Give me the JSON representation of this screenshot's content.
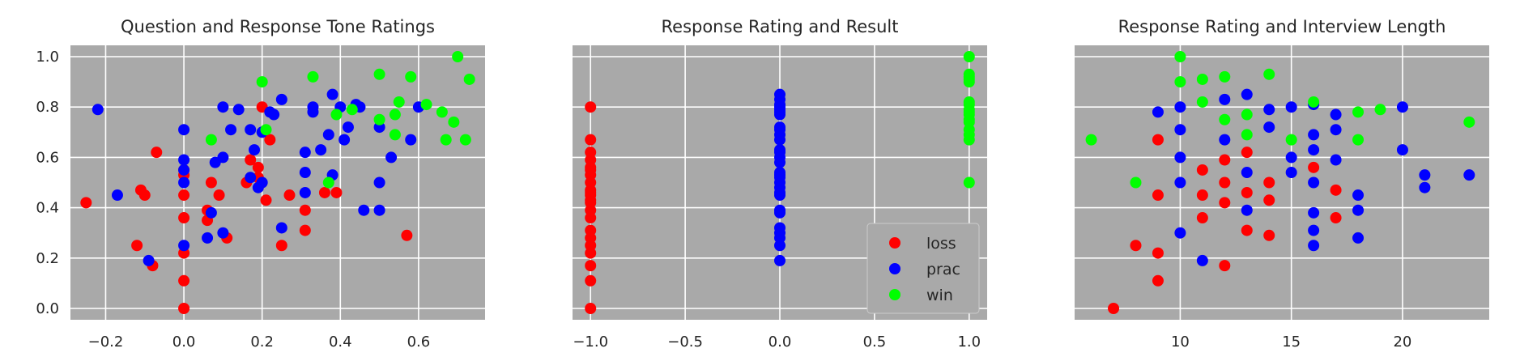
{
  "colors": {
    "background": "#ffffff",
    "plot_area": "#a9a9a9",
    "grid": "#ffffff",
    "loss": "#ff0000",
    "prac": "#0000ff",
    "win": "#00ff00"
  },
  "legend": {
    "placement": "lower-right",
    "entries": [
      "loss",
      "prac",
      "win"
    ]
  },
  "chart_data": [
    {
      "type": "scatter",
      "title": "Question and Response Tone Ratings",
      "xlabel": "",
      "ylabel": "",
      "xlim": [
        -0.29,
        0.77
      ],
      "ylim": [
        -0.045,
        1.045
      ],
      "xticks": [
        -0.2,
        0.0,
        0.2,
        0.4,
        0.6
      ],
      "xtick_labels": [
        "−0.2",
        "0.0",
        "0.2",
        "0.4",
        "0.6"
      ],
      "yticks": [
        0.0,
        0.2,
        0.4,
        0.6,
        0.8,
        1.0
      ],
      "ytick_labels": [
        "0.0",
        "0.2",
        "0.4",
        "0.6",
        "0.8",
        "1.0"
      ],
      "grid": true,
      "series": [
        {
          "name": "loss",
          "color": "#ff0000",
          "points": [
            [
              -0.25,
              0.42
            ],
            [
              -0.12,
              0.25
            ],
            [
              -0.11,
              0.47
            ],
            [
              -0.1,
              0.45
            ],
            [
              -0.08,
              0.17
            ],
            [
              -0.07,
              0.62
            ],
            [
              0.0,
              0.0
            ],
            [
              0.0,
              0.11
            ],
            [
              0.0,
              0.22
            ],
            [
              0.0,
              0.36
            ],
            [
              0.0,
              0.45
            ],
            [
              0.0,
              0.53
            ],
            [
              0.0,
              0.55
            ],
            [
              0.06,
              0.35
            ],
            [
              0.06,
              0.39
            ],
            [
              0.07,
              0.5
            ],
            [
              0.09,
              0.45
            ],
            [
              0.11,
              0.28
            ],
            [
              0.16,
              0.5
            ],
            [
              0.17,
              0.59
            ],
            [
              0.19,
              0.56
            ],
            [
              0.19,
              0.52
            ],
            [
              0.2,
              0.8
            ],
            [
              0.21,
              0.43
            ],
            [
              0.22,
              0.67
            ],
            [
              0.25,
              0.25
            ],
            [
              0.27,
              0.45
            ],
            [
              0.31,
              0.31
            ],
            [
              0.31,
              0.39
            ],
            [
              0.36,
              0.46
            ],
            [
              0.39,
              0.46
            ],
            [
              0.57,
              0.29
            ]
          ]
        },
        {
          "name": "prac",
          "color": "#0000ff",
          "points": [
            [
              -0.22,
              0.79
            ],
            [
              -0.17,
              0.45
            ],
            [
              -0.09,
              0.19
            ],
            [
              0.0,
              0.25
            ],
            [
              0.0,
              0.5
            ],
            [
              0.0,
              0.55
            ],
            [
              0.0,
              0.59
            ],
            [
              0.0,
              0.71
            ],
            [
              0.06,
              0.28
            ],
            [
              0.07,
              0.38
            ],
            [
              0.08,
              0.58
            ],
            [
              0.1,
              0.3
            ],
            [
              0.1,
              0.6
            ],
            [
              0.1,
              0.8
            ],
            [
              0.12,
              0.71
            ],
            [
              0.14,
              0.79
            ],
            [
              0.17,
              0.52
            ],
            [
              0.17,
              0.71
            ],
            [
              0.18,
              0.63
            ],
            [
              0.19,
              0.48
            ],
            [
              0.2,
              0.5
            ],
            [
              0.2,
              0.7
            ],
            [
              0.22,
              0.78
            ],
            [
              0.23,
              0.77
            ],
            [
              0.25,
              0.32
            ],
            [
              0.25,
              0.83
            ],
            [
              0.31,
              0.46
            ],
            [
              0.31,
              0.54
            ],
            [
              0.31,
              0.62
            ],
            [
              0.33,
              0.78
            ],
            [
              0.33,
              0.8
            ],
            [
              0.35,
              0.63
            ],
            [
              0.37,
              0.69
            ],
            [
              0.38,
              0.53
            ],
            [
              0.38,
              0.85
            ],
            [
              0.4,
              0.8
            ],
            [
              0.41,
              0.67
            ],
            [
              0.42,
              0.72
            ],
            [
              0.44,
              0.81
            ],
            [
              0.45,
              0.8
            ],
            [
              0.46,
              0.39
            ],
            [
              0.5,
              0.39
            ],
            [
              0.5,
              0.5
            ],
            [
              0.5,
              0.72
            ],
            [
              0.53,
              0.6
            ],
            [
              0.58,
              0.67
            ],
            [
              0.6,
              0.8
            ]
          ]
        },
        {
          "name": "win",
          "color": "#00ff00",
          "points": [
            [
              0.07,
              0.67
            ],
            [
              0.2,
              0.9
            ],
            [
              0.21,
              0.71
            ],
            [
              0.33,
              0.92
            ],
            [
              0.37,
              0.5
            ],
            [
              0.39,
              0.77
            ],
            [
              0.43,
              0.79
            ],
            [
              0.5,
              0.93
            ],
            [
              0.5,
              0.75
            ],
            [
              0.54,
              0.69
            ],
            [
              0.54,
              0.77
            ],
            [
              0.55,
              0.82
            ],
            [
              0.58,
              0.92
            ],
            [
              0.62,
              0.81
            ],
            [
              0.66,
              0.78
            ],
            [
              0.67,
              0.67
            ],
            [
              0.69,
              0.74
            ],
            [
              0.7,
              1.0
            ],
            [
              0.72,
              0.67
            ],
            [
              0.73,
              0.91
            ]
          ]
        }
      ]
    },
    {
      "type": "scatter",
      "title": "Response Rating and Result",
      "xlabel": "",
      "ylabel": "",
      "xlim": [
        -1.095,
        1.095
      ],
      "ylim": [
        -0.045,
        1.045
      ],
      "xticks": [
        -1.0,
        -0.5,
        0.0,
        0.5,
        1.0
      ],
      "xtick_labels": [
        "−1.0",
        "−0.5",
        "0.0",
        "0.5",
        "1.0"
      ],
      "yticks": [
        0.0,
        0.2,
        0.4,
        0.6,
        0.8,
        1.0
      ],
      "ytick_labels": [],
      "grid": true,
      "series": [
        {
          "name": "loss",
          "color": "#ff0000",
          "points": [
            [
              -1,
              0.0
            ],
            [
              -1,
              0.11
            ],
            [
              -1,
              0.17
            ],
            [
              -1,
              0.22
            ],
            [
              -1,
              0.25
            ],
            [
              -1,
              0.28
            ],
            [
              -1,
              0.31
            ],
            [
              -1,
              0.36
            ],
            [
              -1,
              0.39
            ],
            [
              -1,
              0.42
            ],
            [
              -1,
              0.43
            ],
            [
              -1,
              0.45
            ],
            [
              -1,
              0.46
            ],
            [
              -1,
              0.47
            ],
            [
              -1,
              0.5
            ],
            [
              -1,
              0.53
            ],
            [
              -1,
              0.55
            ],
            [
              -1,
              0.56
            ],
            [
              -1,
              0.59
            ],
            [
              -1,
              0.62
            ],
            [
              -1,
              0.67
            ],
            [
              -1,
              0.8
            ]
          ]
        },
        {
          "name": "prac",
          "color": "#0000ff",
          "points": [
            [
              0,
              0.19
            ],
            [
              0,
              0.25
            ],
            [
              0,
              0.28
            ],
            [
              0,
              0.3
            ],
            [
              0,
              0.32
            ],
            [
              0,
              0.38
            ],
            [
              0,
              0.39
            ],
            [
              0,
              0.45
            ],
            [
              0,
              0.46
            ],
            [
              0,
              0.48
            ],
            [
              0,
              0.5
            ],
            [
              0,
              0.52
            ],
            [
              0,
              0.53
            ],
            [
              0,
              0.54
            ],
            [
              0,
              0.58
            ],
            [
              0,
              0.6
            ],
            [
              0,
              0.62
            ],
            [
              0,
              0.63
            ],
            [
              0,
              0.67
            ],
            [
              0,
              0.69
            ],
            [
              0,
              0.71
            ],
            [
              0,
              0.72
            ],
            [
              0,
              0.77
            ],
            [
              0,
              0.78
            ],
            [
              0,
              0.79
            ],
            [
              0,
              0.8
            ],
            [
              0,
              0.81
            ],
            [
              0,
              0.83
            ],
            [
              0,
              0.85
            ]
          ]
        },
        {
          "name": "win",
          "color": "#00ff00",
          "points": [
            [
              1,
              0.5
            ],
            [
              1,
              0.67
            ],
            [
              1,
              0.69
            ],
            [
              1,
              0.71
            ],
            [
              1,
              0.74
            ],
            [
              1,
              0.75
            ],
            [
              1,
              0.77
            ],
            [
              1,
              0.78
            ],
            [
              1,
              0.79
            ],
            [
              1,
              0.81
            ],
            [
              1,
              0.82
            ],
            [
              1,
              0.9
            ],
            [
              1,
              0.91
            ],
            [
              1,
              0.92
            ],
            [
              1,
              0.93
            ],
            [
              1,
              1.0
            ]
          ]
        }
      ]
    },
    {
      "type": "scatter",
      "title": "Response Rating and Interview Length",
      "xlabel": "",
      "ylabel": "",
      "xlim": [
        5.25,
        23.9
      ],
      "ylim": [
        -0.045,
        1.045
      ],
      "xticks": [
        10,
        15,
        20
      ],
      "xtick_labels": [
        "10",
        "15",
        "20"
      ],
      "yticks": [
        0.0,
        0.2,
        0.4,
        0.6,
        0.8,
        1.0
      ],
      "ytick_labels": [],
      "grid": true,
      "series": [
        {
          "name": "loss",
          "color": "#ff0000",
          "points": [
            [
              7,
              0.0
            ],
            [
              8,
              0.25
            ],
            [
              9,
              0.11
            ],
            [
              9,
              0.22
            ],
            [
              9,
              0.45
            ],
            [
              9,
              0.67
            ],
            [
              11,
              0.36
            ],
            [
              11,
              0.45
            ],
            [
              11,
              0.55
            ],
            [
              12,
              0.17
            ],
            [
              12,
              0.42
            ],
            [
              12,
              0.5
            ],
            [
              12,
              0.59
            ],
            [
              13,
              0.31
            ],
            [
              13,
              0.46
            ],
            [
              13,
              0.62
            ],
            [
              14,
              0.29
            ],
            [
              14,
              0.43
            ],
            [
              14,
              0.5
            ],
            [
              16,
              0.56
            ],
            [
              17,
              0.36
            ],
            [
              17,
              0.47
            ]
          ]
        },
        {
          "name": "prac",
          "color": "#0000ff",
          "points": [
            [
              9,
              0.78
            ],
            [
              10,
              0.3
            ],
            [
              10,
              0.5
            ],
            [
              10,
              0.6
            ],
            [
              10,
              0.71
            ],
            [
              10,
              0.8
            ],
            [
              11,
              0.19
            ],
            [
              12,
              0.67
            ],
            [
              12,
              0.83
            ],
            [
              13,
              0.39
            ],
            [
              13,
              0.54
            ],
            [
              13,
              0.85
            ],
            [
              14,
              0.72
            ],
            [
              14,
              0.79
            ],
            [
              15,
              0.54
            ],
            [
              15,
              0.6
            ],
            [
              15,
              0.8
            ],
            [
              16,
              0.25
            ],
            [
              16,
              0.31
            ],
            [
              16,
              0.38
            ],
            [
              16,
              0.5
            ],
            [
              16,
              0.63
            ],
            [
              16,
              0.69
            ],
            [
              16,
              0.81
            ],
            [
              17,
              0.59
            ],
            [
              17,
              0.71
            ],
            [
              17,
              0.77
            ],
            [
              18,
              0.28
            ],
            [
              18,
              0.39
            ],
            [
              18,
              0.45
            ],
            [
              20,
              0.63
            ],
            [
              20,
              0.8
            ],
            [
              21,
              0.48
            ],
            [
              21,
              0.53
            ],
            [
              23,
              0.53
            ]
          ]
        },
        {
          "name": "win",
          "color": "#00ff00",
          "points": [
            [
              6,
              0.67
            ],
            [
              8,
              0.5
            ],
            [
              10,
              0.9
            ],
            [
              10,
              1.0
            ],
            [
              11,
              0.82
            ],
            [
              11,
              0.91
            ],
            [
              12,
              0.75
            ],
            [
              12,
              0.92
            ],
            [
              13,
              0.69
            ],
            [
              13,
              0.77
            ],
            [
              14,
              0.93
            ],
            [
              15,
              0.67
            ],
            [
              16,
              0.82
            ],
            [
              18,
              0.67
            ],
            [
              18,
              0.78
            ],
            [
              19,
              0.79
            ],
            [
              23,
              0.74
            ]
          ]
        }
      ]
    }
  ]
}
